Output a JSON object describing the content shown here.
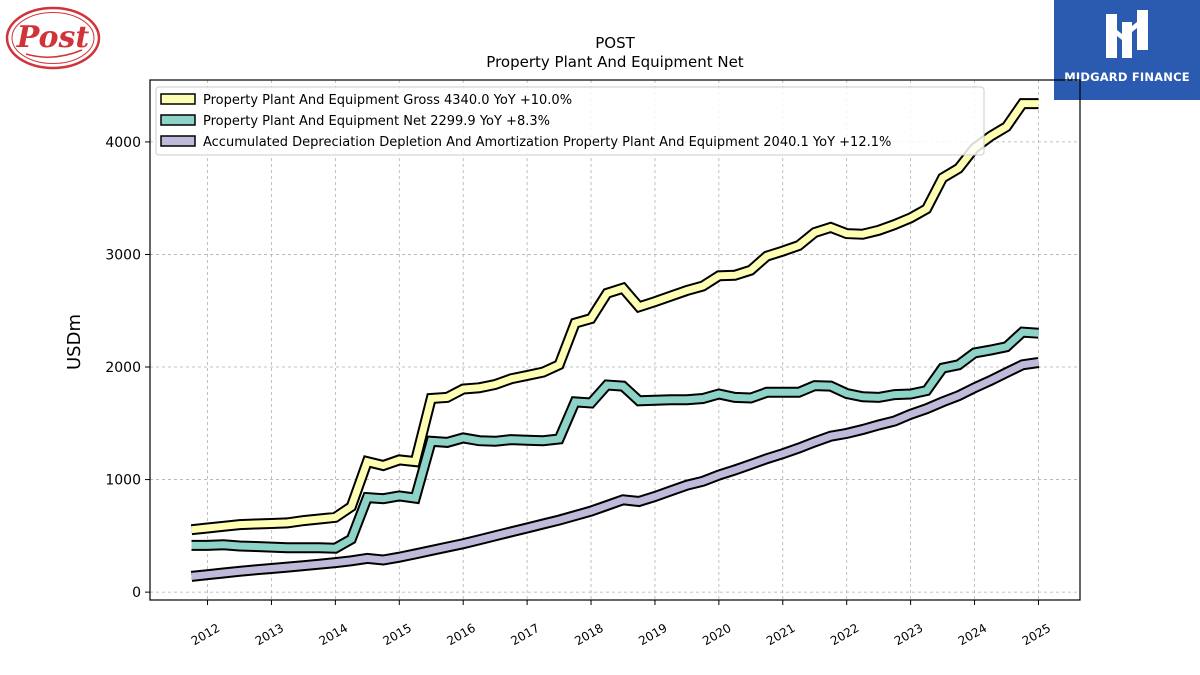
{
  "brand_left": {
    "name": "Post",
    "color": "#d0343a"
  },
  "brand_right": {
    "name": "MIDGARD FINANCE",
    "color": "#2a5bb0"
  },
  "chart_data": {
    "type": "line",
    "title": "POST",
    "subtitle": "Property Plant And Equipment Net",
    "ylabel": "USDm",
    "xlabel": "",
    "ylim": [
      -70,
      4550
    ],
    "xlim": [
      2011.1,
      2025.65
    ],
    "yticks": [
      0,
      1000,
      2000,
      3000,
      4000
    ],
    "xticks": [
      "2012",
      "2013",
      "2014",
      "2015",
      "2016",
      "2017",
      "2018",
      "2019",
      "2020",
      "2021",
      "2022",
      "2023",
      "2024",
      "2025"
    ],
    "grid": true,
    "legend_position": "top-left",
    "series": [
      {
        "name": "Property Plant And Equipment Gross  4340.0 YoY +10.0%",
        "color": "#ffffb3",
        "x": [
          2011.75,
          2012.0,
          2012.25,
          2012.5,
          2012.75,
          2013.0,
          2013.25,
          2013.5,
          2013.75,
          2014.0,
          2014.25,
          2014.5,
          2014.75,
          2015.0,
          2015.25,
          2015.5,
          2015.75,
          2016.0,
          2016.25,
          2016.5,
          2016.75,
          2017.0,
          2017.25,
          2017.5,
          2017.75,
          2018.0,
          2018.25,
          2018.5,
          2018.75,
          2019.0,
          2019.25,
          2019.5,
          2019.75,
          2020.0,
          2020.25,
          2020.5,
          2020.75,
          2021.0,
          2021.25,
          2021.5,
          2021.75,
          2022.0,
          2022.25,
          2022.5,
          2022.75,
          2023.0,
          2023.25,
          2023.5,
          2023.75,
          2024.0,
          2024.25,
          2024.5,
          2024.75,
          2025.0
        ],
        "values": [
          555,
          570,
          585,
          600,
          605,
          610,
          615,
          635,
          650,
          665,
          760,
          1160,
          1125,
          1175,
          1160,
          1720,
          1730,
          1805,
          1815,
          1845,
          1895,
          1925,
          1955,
          2020,
          2390,
          2430,
          2655,
          2700,
          2535,
          2580,
          2630,
          2680,
          2720,
          2810,
          2815,
          2860,
          2985,
          3030,
          3080,
          3195,
          3240,
          3185,
          3180,
          3215,
          3265,
          3325,
          3405,
          3680,
          3765,
          3945,
          4050,
          4135,
          4340,
          4340
        ]
      },
      {
        "name": "Property Plant And Equipment Net  2299.9 YoY +8.3%",
        "color": "#8dd3c7",
        "x": [
          2011.75,
          2012.0,
          2012.25,
          2012.5,
          2012.75,
          2013.0,
          2013.25,
          2013.5,
          2013.75,
          2014.0,
          2014.25,
          2014.5,
          2014.75,
          2015.0,
          2015.25,
          2015.5,
          2015.75,
          2016.0,
          2016.25,
          2016.5,
          2016.75,
          2017.0,
          2017.25,
          2017.5,
          2017.75,
          2018.0,
          2018.25,
          2018.5,
          2018.75,
          2019.0,
          2019.25,
          2019.5,
          2019.75,
          2020.0,
          2020.25,
          2020.5,
          2020.75,
          2021.0,
          2021.25,
          2021.5,
          2021.75,
          2022.0,
          2022.25,
          2022.5,
          2022.75,
          2023.0,
          2023.25,
          2023.5,
          2023.75,
          2024.0,
          2024.25,
          2024.5,
          2024.75,
          2025.0
        ],
        "values": [
          415,
          415,
          420,
          410,
          405,
          400,
          395,
          395,
          395,
          390,
          470,
          840,
          830,
          855,
          835,
          1340,
          1330,
          1370,
          1345,
          1340,
          1355,
          1350,
          1345,
          1360,
          1690,
          1680,
          1840,
          1830,
          1700,
          1705,
          1710,
          1710,
          1720,
          1760,
          1730,
          1725,
          1775,
          1775,
          1775,
          1835,
          1830,
          1765,
          1735,
          1730,
          1755,
          1760,
          1790,
          1990,
          2020,
          2125,
          2150,
          2180,
          2310,
          2300
        ]
      },
      {
        "name": "Accumulated Depreciation Depletion And Amortization Property Plant And Equipment  2040.1 YoY +12.1%",
        "color": "#bebada",
        "x": [
          2011.75,
          2012.0,
          2012.25,
          2012.5,
          2012.75,
          2013.0,
          2013.25,
          2013.5,
          2013.75,
          2014.0,
          2014.25,
          2014.5,
          2014.75,
          2015.0,
          2015.25,
          2015.5,
          2015.75,
          2016.0,
          2016.25,
          2016.5,
          2016.75,
          2017.0,
          2017.25,
          2017.5,
          2017.75,
          2018.0,
          2018.25,
          2018.5,
          2018.75,
          2019.0,
          2019.25,
          2019.5,
          2019.75,
          2020.0,
          2020.25,
          2020.5,
          2020.75,
          2021.0,
          2021.25,
          2021.5,
          2021.75,
          2022.0,
          2022.25,
          2022.5,
          2022.75,
          2023.0,
          2023.25,
          2023.5,
          2023.75,
          2024.0,
          2024.25,
          2024.5,
          2024.75,
          2025.0
        ],
        "values": [
          140,
          155,
          170,
          185,
          198,
          210,
          222,
          235,
          248,
          262,
          278,
          300,
          285,
          310,
          340,
          370,
          400,
          430,
          465,
          500,
          535,
          570,
          605,
          640,
          680,
          720,
          770,
          820,
          805,
          850,
          900,
          950,
          985,
          1040,
          1085,
          1135,
          1185,
          1230,
          1280,
          1335,
          1385,
          1410,
          1445,
          1485,
          1520,
          1580,
          1630,
          1690,
          1745,
          1815,
          1880,
          1950,
          2020,
          2040
        ]
      }
    ]
  }
}
